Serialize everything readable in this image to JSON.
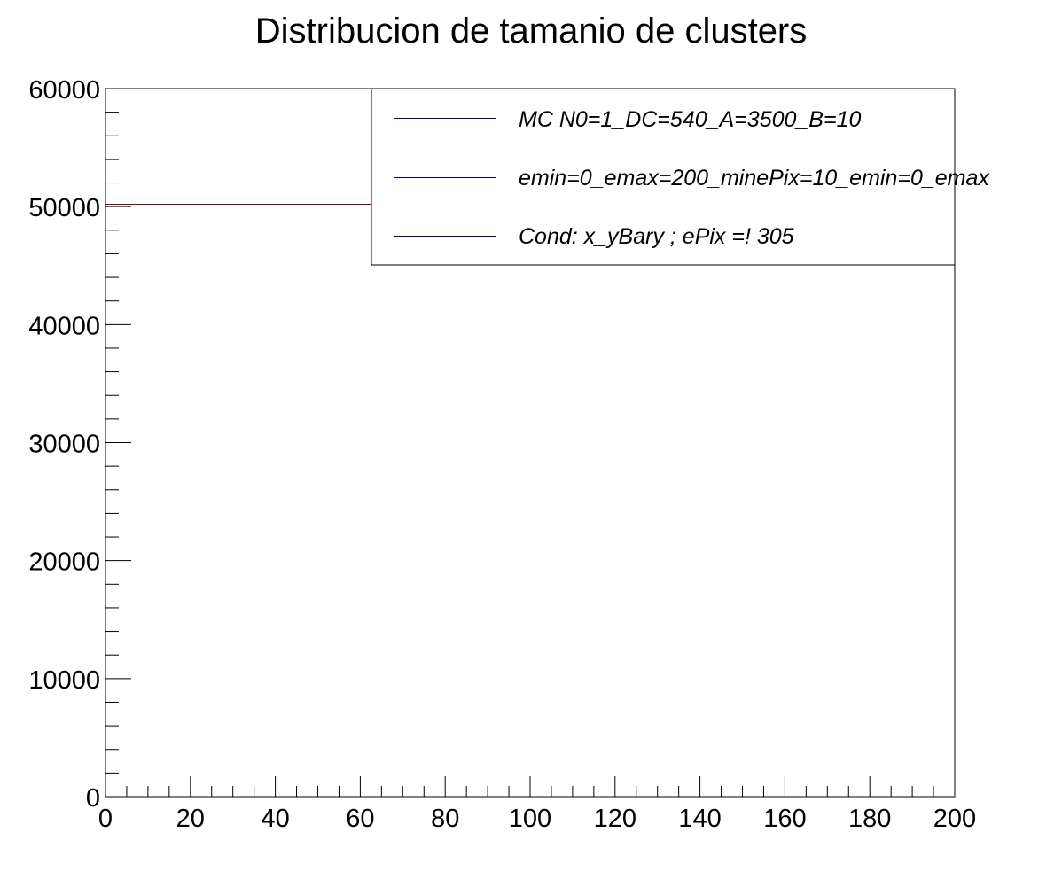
{
  "chart_data": {
    "type": "histogram",
    "title": "Distribucion de tamanio de clusters",
    "xlabel": "",
    "ylabel": "",
    "xlim": [
      0,
      200
    ],
    "ylim": [
      0,
      60000
    ],
    "x_ticks": [
      0,
      20,
      40,
      60,
      80,
      100,
      120,
      140,
      160,
      180,
      200
    ],
    "y_ticks": [
      0,
      10000,
      20000,
      30000,
      40000,
      50000,
      60000
    ],
    "x_tick_labels": [
      "0",
      "20",
      "40",
      "60",
      "80",
      "100",
      "120",
      "140",
      "160",
      "180",
      "200"
    ],
    "y_tick_labels": [
      "0",
      "10000",
      "20000",
      "30000",
      "40000",
      "50000",
      "60000"
    ],
    "x_minor_step": 5,
    "y_minor_step": 2000,
    "grid": false,
    "series": [
      {
        "color": "#8b0000",
        "segments": [
          {
            "x": [
              0,
              200
            ],
            "y": 50200
          }
        ]
      }
    ],
    "legend": {
      "placement": "top-right",
      "entries": [
        {
          "label": "MC N0=1_DC=540_A=3500_B=10",
          "color": "#00008b"
        },
        {
          "label": "emin=0_emax=200_minePix=10_emin=0_emax",
          "color": "#00008b"
        },
        {
          "label": "Cond: x_yBary ; ePix =! 305",
          "color": "#00008b"
        }
      ]
    }
  }
}
